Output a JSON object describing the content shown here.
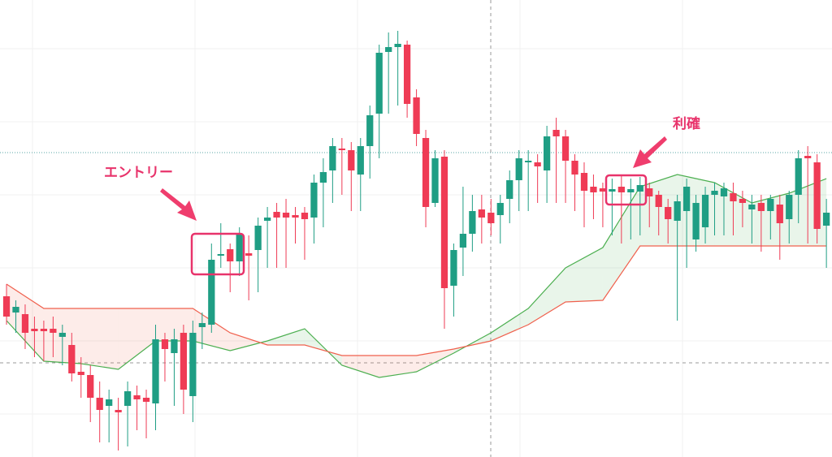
{
  "chart_data": {
    "type": "candlestick",
    "ylim": [
      0,
      563
    ],
    "xlim": [
      -0.7,
      88.6
    ],
    "grid": true,
    "up_color": "#1f9e84",
    "down_color": "#ef3b55",
    "open": [
      198,
      178,
      176,
      158,
      158,
      158,
      148,
      138,
      105,
      101,
      73,
      63,
      58,
      63,
      76,
      73,
      66,
      145,
      128,
      153,
      75,
      160,
      163,
      248,
      256,
      241,
      251,
      255,
      291,
      302,
      301,
      298,
      301,
      295,
      338,
      353,
      380,
      378,
      348,
      383,
      423,
      499,
      505,
      508,
      443,
      393,
      313,
      370,
      211,
      258,
      275,
      305,
      301,
      298,
      318,
      341,
      363,
      363,
      353,
      403,
      395,
      365,
      350,
      333,
      331,
      327,
      333,
      326,
      327,
      331,
      323,
      308,
      291,
      303,
      268,
      283,
      323,
      321,
      325,
      318,
      305,
      313,
      303,
      311,
      293,
      323,
      371,
      363,
      285
    ],
    "high": [
      213,
      193,
      188,
      173,
      168,
      173,
      163,
      153,
      123,
      113,
      93,
      83,
      73,
      93,
      88,
      83,
      163,
      153,
      158,
      163,
      168,
      178,
      263,
      288,
      263,
      283,
      273,
      295,
      308,
      313,
      318,
      308,
      308,
      348,
      368,
      393,
      393,
      388,
      393,
      433,
      508,
      523,
      525,
      513,
      453,
      403,
      378,
      378,
      263,
      333,
      323,
      323,
      318,
      323,
      353,
      378,
      378,
      373,
      408,
      418,
      403,
      373,
      363,
      348,
      338,
      343,
      348,
      343,
      345,
      338,
      328,
      318,
      323,
      343,
      323,
      333,
      338,
      338,
      338,
      328,
      323,
      323,
      323,
      323,
      328,
      378,
      383,
      373,
      318
    ],
    "low": [
      163,
      153,
      133,
      123,
      118,
      123,
      113,
      93,
      73,
      43,
      18,
      18,
      8,
      13,
      33,
      23,
      33,
      93,
      63,
      53,
      43,
      133,
      153,
      233,
      203,
      223,
      193,
      203,
      233,
      233,
      233,
      263,
      243,
      263,
      283,
      313,
      323,
      303,
      303,
      343,
      368,
      423,
      433,
      418,
      383,
      283,
      308,
      158,
      173,
      223,
      253,
      263,
      273,
      263,
      288,
      303,
      303,
      313,
      313,
      313,
      313,
      303,
      283,
      293,
      283,
      273,
      263,
      268,
      273,
      283,
      273,
      263,
      168,
      233,
      253,
      263,
      273,
      273,
      273,
      283,
      263,
      253,
      268,
      243,
      263,
      288,
      263,
      263,
      233
    ],
    "close": [
      173,
      185,
      153,
      155,
      155,
      153,
      153,
      103,
      101,
      73,
      58,
      71,
      55,
      81,
      71,
      68,
      145,
      133,
      145,
      83,
      153,
      165,
      243,
      250,
      241,
      275,
      248,
      285,
      295,
      295,
      295,
      295,
      293,
      338,
      351,
      383,
      378,
      353,
      383,
      421,
      498,
      505,
      509,
      435,
      398,
      308,
      368,
      208,
      255,
      275,
      303,
      295,
      288,
      313,
      341,
      368,
      365,
      358,
      395,
      395,
      365,
      348,
      328,
      326,
      327,
      330,
      326,
      330,
      335,
      321,
      308,
      293,
      315,
      333,
      313,
      323,
      328,
      331,
      315,
      313,
      311,
      303,
      318,
      288,
      323,
      368,
      368,
      281,
      301
    ],
    "cloud": {
      "x": [
        0,
        4,
        8,
        12,
        16,
        20,
        24,
        28,
        32,
        36,
        40,
        44,
        48,
        52,
        56,
        60,
        64,
        68,
        72,
        76,
        80,
        84,
        88
      ],
      "span_a": {
        "color": "#4caf50",
        "values": [
          168,
          118,
          115,
          108,
          143,
          143,
          131,
          143,
          158,
          113,
          98,
          105,
          128,
          153,
          183,
          233,
          258,
          333,
          348,
          338,
          313,
          325,
          343
        ]
      },
      "span_b": {
        "color": "#f0604d",
        "values": [
          213,
          183,
          183,
          183,
          183,
          183,
          153,
          138,
          138,
          125,
          125,
          125,
          133,
          143,
          163,
          191,
          193,
          260,
          260,
          260,
          260,
          260,
          260
        ]
      },
      "up_fill": "#4caf50",
      "down_fill": "#f0604d"
    },
    "annotations": [
      {
        "text": "エントリー",
        "color": "#e8336b"
      },
      {
        "text": "利確",
        "color": "#e8336b"
      }
    ]
  }
}
